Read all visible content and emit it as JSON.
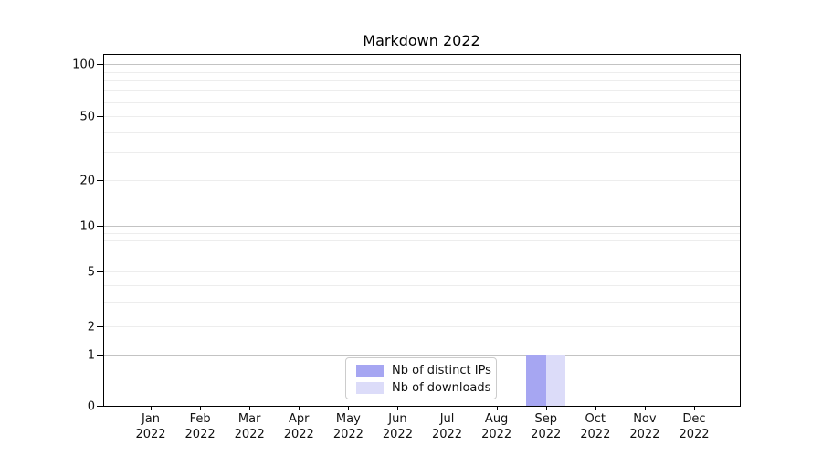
{
  "chart_data": {
    "type": "bar",
    "title": "Markdown 2022",
    "categories": [
      "Jan",
      "Feb",
      "Mar",
      "Apr",
      "May",
      "Jun",
      "Jul",
      "Aug",
      "Sep",
      "Oct",
      "Nov",
      "Dec"
    ],
    "category_year": "2022",
    "series": [
      {
        "name": "Nb of distinct IPs",
        "color": "#a6a6f2",
        "values": [
          0,
          0,
          0,
          0,
          0,
          0,
          0,
          0,
          1,
          0,
          0,
          0
        ]
      },
      {
        "name": "Nb of downloads",
        "color": "#dcdcf9",
        "values": [
          0,
          0,
          0,
          0,
          0,
          0,
          0,
          0,
          1,
          0,
          0,
          0
        ]
      }
    ],
    "y_axis": {
      "scale": "log-like with 0 baseline",
      "tick_labels": [
        "0",
        "1",
        "2",
        "5",
        "10",
        "20",
        "50",
        "100"
      ],
      "tick_values": [
        0,
        1,
        2,
        5,
        10,
        20,
        50,
        100
      ],
      "major_grid_values": [
        1,
        10,
        100
      ],
      "minor_grid_values": [
        2,
        3,
        4,
        5,
        6,
        7,
        8,
        9,
        20,
        30,
        40,
        50,
        60,
        70,
        80,
        90
      ],
      "range": [
        0,
        120
      ]
    },
    "x_axis": {
      "label": "",
      "tick_style": "two-line month + year"
    },
    "legend": {
      "position": "lower center",
      "entries": [
        "Nb of distinct IPs",
        "Nb of downloads"
      ]
    },
    "colors": {
      "grid_major": "#c3c3c3",
      "grid_minor": "#ededed",
      "spine": "#000000",
      "text": "#111111",
      "background": "#ffffff"
    },
    "grid": "on (horizontal only, major + minor)"
  }
}
